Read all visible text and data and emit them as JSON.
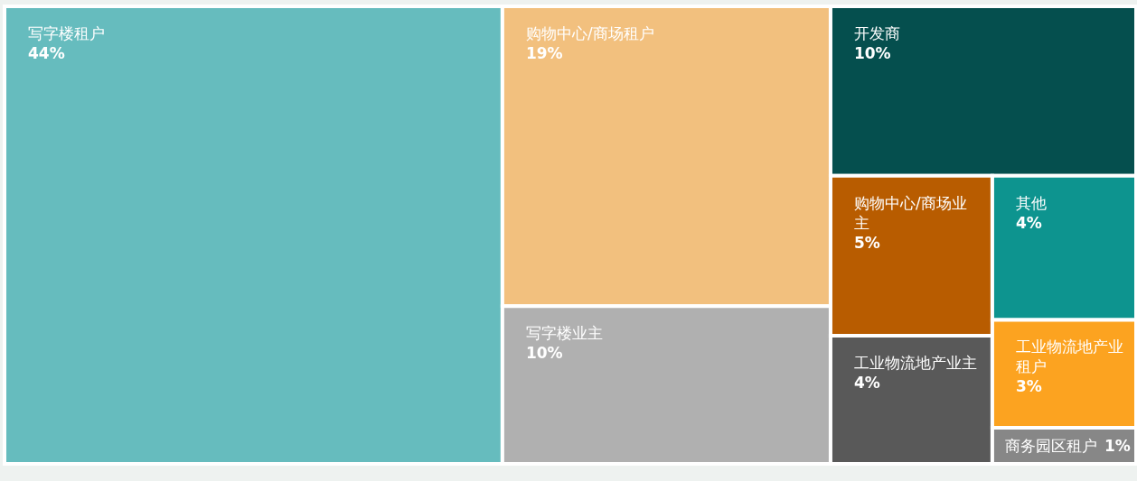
{
  "chart_data": {
    "type": "other",
    "categories": [
      "写字楼租户",
      "购物中心/商场租户",
      "写字楼业主",
      "开发商",
      "购物中心/商场业主",
      "工业物流地产业主",
      "其他",
      "工业物流地产业租户",
      "商务园区租户"
    ],
    "values": [
      44,
      19,
      10,
      10,
      5,
      4,
      4,
      3,
      1
    ],
    "value_labels": [
      "44%",
      "19%",
      "10%",
      "10%",
      "5%",
      "4%",
      "4%",
      "3%",
      "1%"
    ],
    "colors": [
      "#66bcbe",
      "#f2c07e",
      "#b0b0b0",
      "#054f4e",
      "#b85c00",
      "#595959",
      "#0d948f",
      "#fca320",
      "#878787"
    ]
  }
}
